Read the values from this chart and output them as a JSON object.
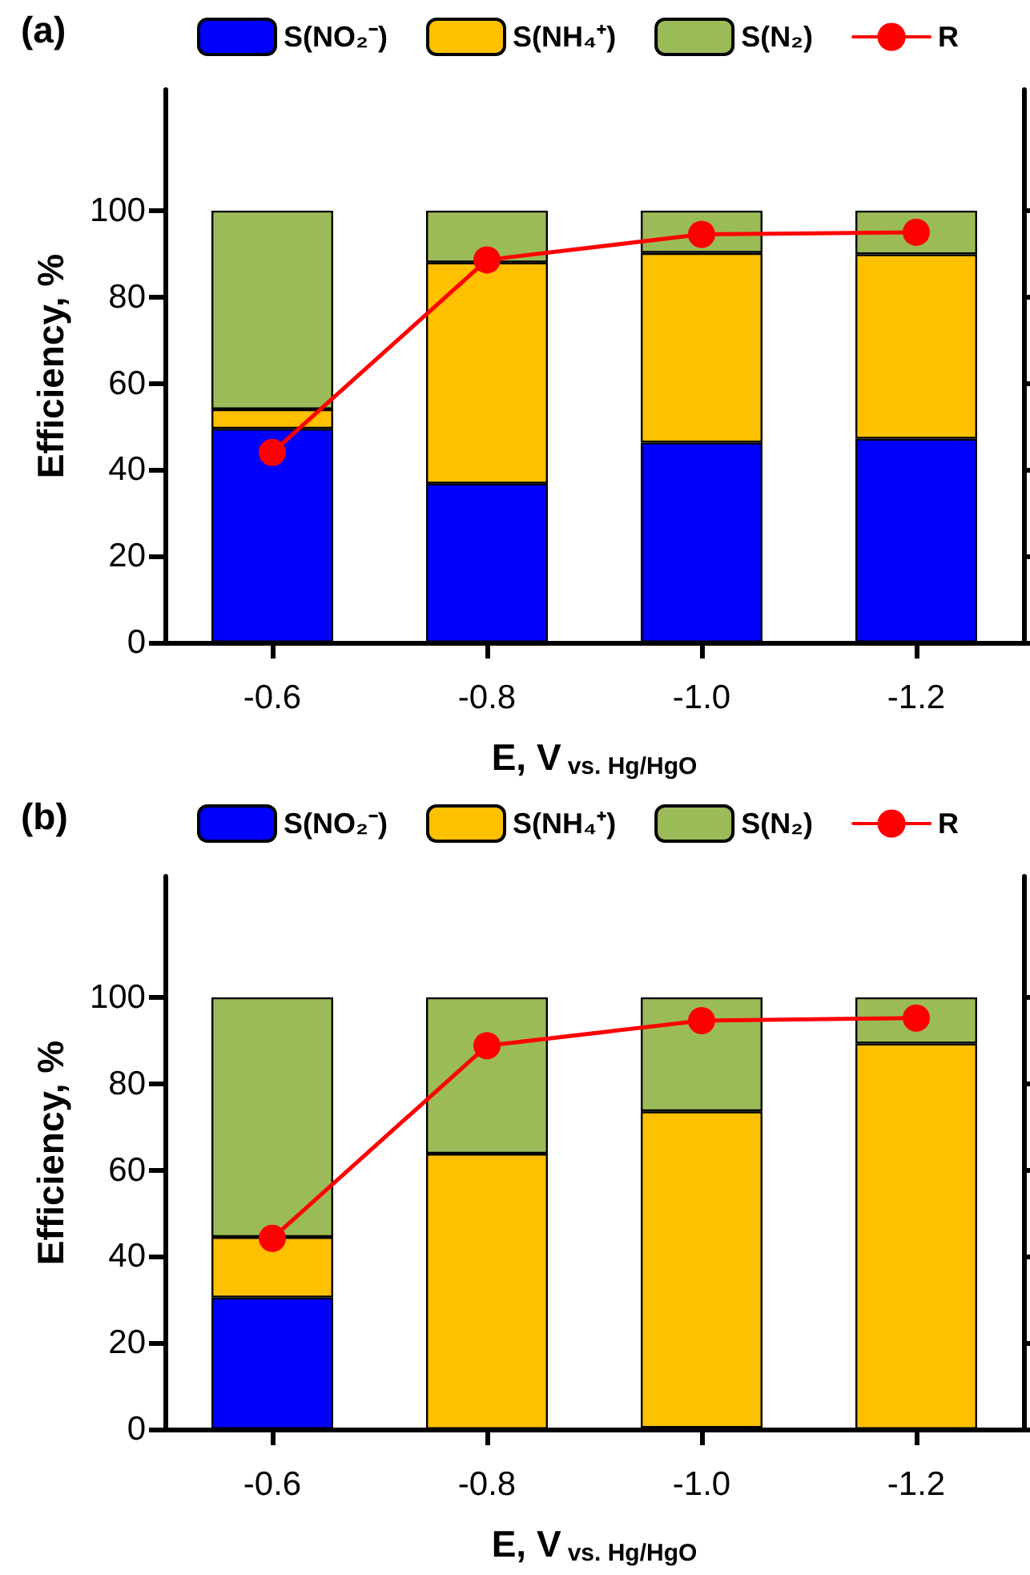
{
  "chart_data": [
    {
      "type": "bar",
      "title": "(a)",
      "xlabel": "E, V$_{vs. Hg/HgO}$",
      "ylabel": "Efficiency, %",
      "categories": [
        "-0.6",
        "-0.8",
        "-1.0",
        "-1.2"
      ],
      "stacked": true,
      "legend": "top",
      "grid": false,
      "ylim": [
        0,
        128
      ],
      "yticks": [
        0,
        20,
        40,
        60,
        80,
        100
      ],
      "series": [
        {
          "name": "S(NO₂⁻)",
          "color": "#0000ff",
          "values": [
            49.5,
            36.8,
            46.3,
            47.2
          ]
        },
        {
          "name": "S(NH₄⁺)",
          "color": "#ffc000",
          "values": [
            4.5,
            51.2,
            43.9,
            42.7
          ]
        },
        {
          "name": "S(N₂)",
          "color": "#9bbb59",
          "values": [
            46,
            12,
            9.8,
            10.1
          ]
        },
        {
          "name": "R",
          "type": "line",
          "color": "#ff0000",
          "marker": "circle",
          "values": [
            44,
            88.6,
            94.5,
            95
          ]
        }
      ]
    },
    {
      "type": "bar",
      "title": "(b)",
      "xlabel": "E, V$_{vs. Hg/HgO}$",
      "ylabel": "Efficiency, %",
      "categories": [
        "-0.6",
        "-0.8",
        "-1.0",
        "-1.2"
      ],
      "stacked": true,
      "legend": "top",
      "grid": false,
      "ylim": [
        0,
        128
      ],
      "yticks": [
        0,
        20,
        40,
        60,
        80,
        100
      ],
      "series": [
        {
          "name": "S(NO₂⁻)",
          "color": "#0000ff",
          "values": [
            30.5,
            0,
            0.3,
            0
          ]
        },
        {
          "name": "S(NH₄⁺)",
          "color": "#ffc000",
          "values": [
            14,
            63.8,
            73.3,
            89.3
          ]
        },
        {
          "name": "S(N₂)",
          "color": "#9bbb59",
          "values": [
            55.5,
            36.2,
            26.4,
            10.7
          ]
        },
        {
          "name": "R",
          "type": "line",
          "color": "#ff0000",
          "marker": "circle",
          "values": [
            44.2,
            88.8,
            94.6,
            95.2
          ]
        }
      ]
    }
  ]
}
